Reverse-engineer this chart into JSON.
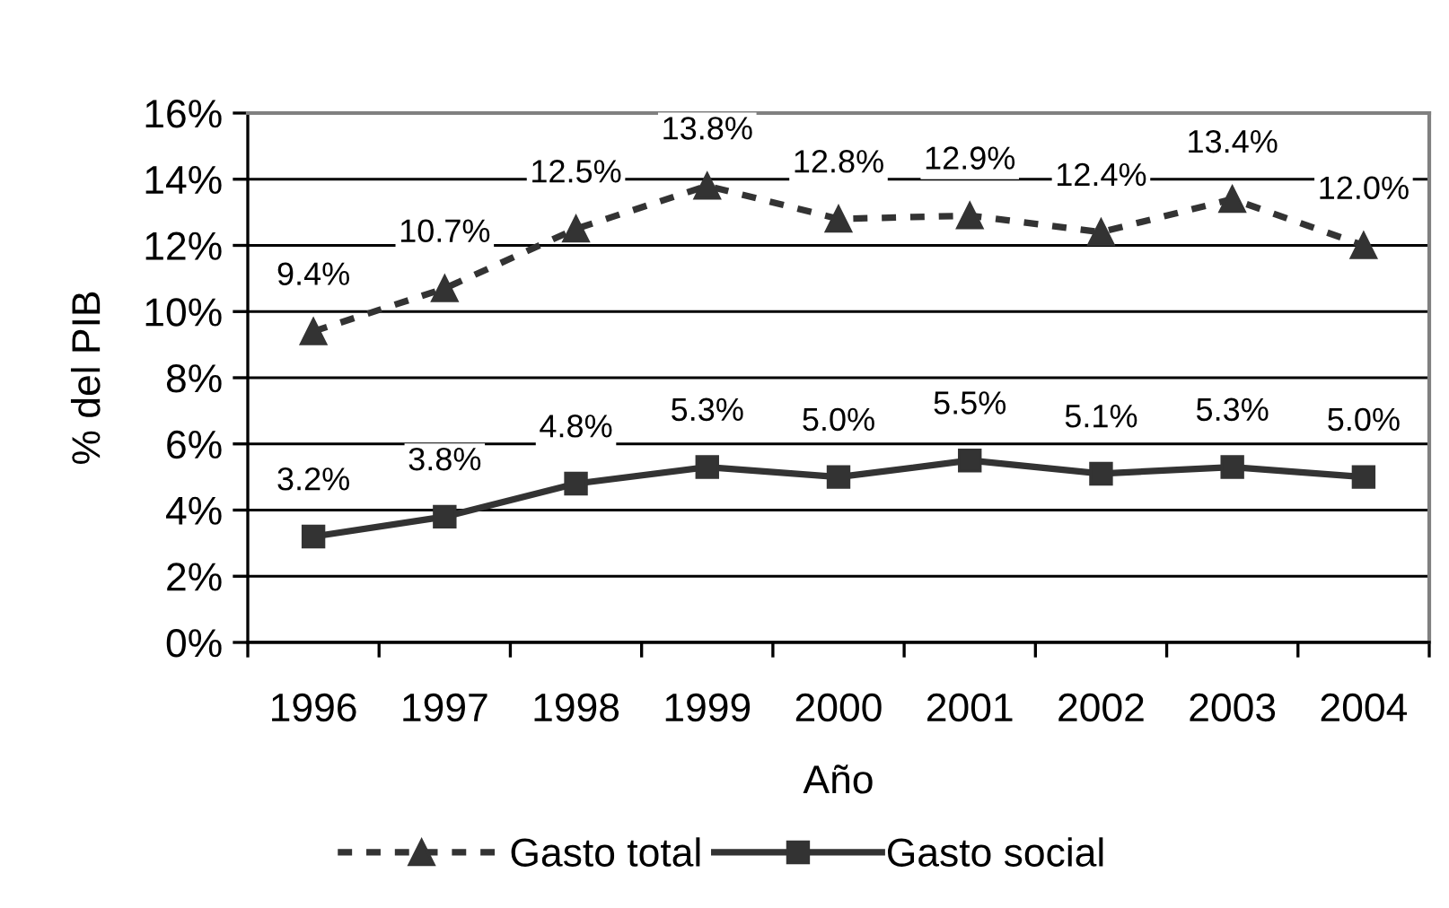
{
  "chart_data": {
    "type": "line",
    "xlabel": "Año",
    "ylabel": "% del PIB",
    "categories": [
      "1996",
      "1997",
      "1998",
      "1999",
      "2000",
      "2001",
      "2002",
      "2003",
      "2004"
    ],
    "ylim": [
      0,
      16
    ],
    "yticks": [
      {
        "value": 0,
        "label": "0%"
      },
      {
        "value": 2,
        "label": "2%"
      },
      {
        "value": 4,
        "label": "4%"
      },
      {
        "value": 6,
        "label": "6%"
      },
      {
        "value": 8,
        "label": "8%"
      },
      {
        "value": 10,
        "label": "10%"
      },
      {
        "value": 12,
        "label": "12%"
      },
      {
        "value": 14,
        "label": "14%"
      },
      {
        "value": 16,
        "label": "16%"
      }
    ],
    "grid": "y",
    "legend": "bottom",
    "series": [
      {
        "name": "Gasto total",
        "color": "#333333",
        "marker": "triangle",
        "line_style": "dashed",
        "values": [
          9.4,
          10.7,
          12.5,
          13.8,
          12.8,
          12.9,
          12.4,
          13.4,
          12.0
        ],
        "value_labels": [
          "9.4%",
          "10.7%",
          "12.5%",
          "13.8%",
          "12.8%",
          "12.9%",
          "12.4%",
          "13.4%",
          "12.0%"
        ]
      },
      {
        "name": "Gasto social",
        "color": "#333333",
        "marker": "square",
        "line_style": "solid",
        "values": [
          3.2,
          3.8,
          4.8,
          5.3,
          5.0,
          5.5,
          5.1,
          5.3,
          5.0
        ],
        "value_labels": [
          "3.2%",
          "3.8%",
          "4.8%",
          "5.3%",
          "5.0%",
          "5.5%",
          "5.1%",
          "5.3%",
          "5.0%"
        ]
      }
    ]
  }
}
